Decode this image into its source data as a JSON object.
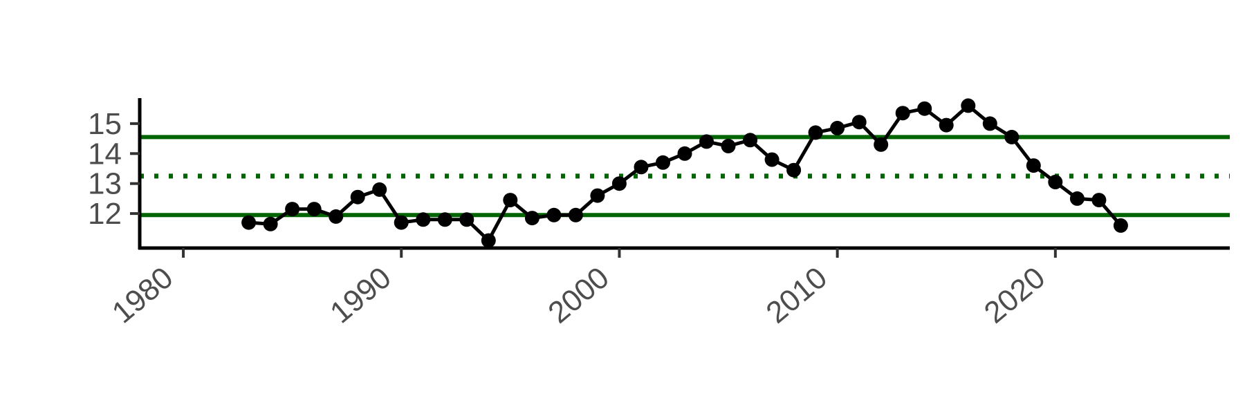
{
  "chart_data": {
    "type": "line",
    "title": "",
    "xlabel": "",
    "ylabel": "",
    "x": [
      1983,
      1984,
      1985,
      1986,
      1987,
      1988,
      1989,
      1990,
      1991,
      1992,
      1993,
      1994,
      1995,
      1996,
      1997,
      1998,
      1999,
      2000,
      2001,
      2002,
      2003,
      2004,
      2005,
      2006,
      2007,
      2008,
      2009,
      2010,
      2011,
      2012,
      2013,
      2014,
      2015,
      2016,
      2017,
      2018,
      2019,
      2020,
      2021,
      2022,
      2023
    ],
    "series": [
      {
        "values": [
          11.7,
          11.65,
          12.15,
          12.15,
          11.9,
          12.55,
          12.8,
          11.7,
          11.8,
          11.8,
          11.8,
          11.1,
          12.45,
          11.85,
          11.95,
          11.95,
          12.6,
          13.0,
          13.55,
          13.7,
          14.0,
          14.4,
          14.25,
          14.45,
          13.8,
          13.45,
          14.7,
          14.85,
          15.05,
          14.3,
          15.35,
          15.5,
          14.95,
          15.6,
          15.0,
          14.55,
          13.6,
          13.05,
          12.5,
          12.45,
          11.6
        ],
        "color": "#000000"
      }
    ],
    "reference_lines": [
      {
        "y": 14.55,
        "style": "solid",
        "color": "#006400"
      },
      {
        "y": 13.25,
        "style": "dotted",
        "color": "#006400"
      },
      {
        "y": 11.95,
        "style": "solid",
        "color": "#006400"
      }
    ],
    "xticks": [
      1980,
      1990,
      2000,
      2010,
      2020
    ],
    "xtick_labels": [
      "1980",
      "1990",
      "2000",
      "2010",
      "2020"
    ],
    "yticks": [
      12,
      13,
      14,
      15
    ],
    "ytick_labels": [
      "12",
      "13",
      "14",
      "15"
    ],
    "xlim": [
      1978,
      2028
    ],
    "ylim": [
      10.85,
      15.85
    ],
    "grid": false,
    "legend": "none"
  }
}
